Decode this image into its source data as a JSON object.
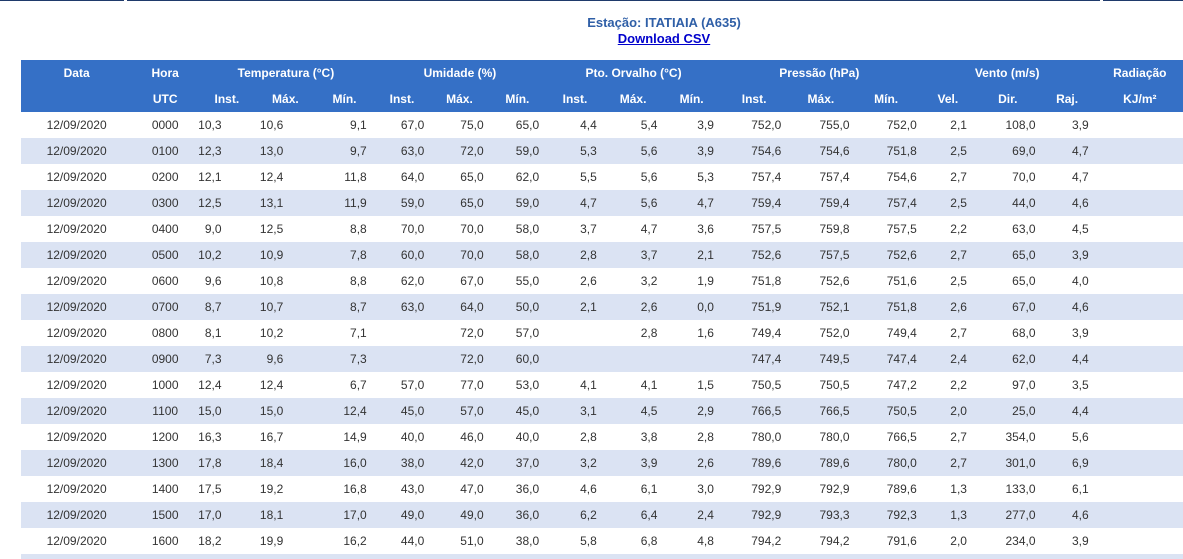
{
  "header": {
    "title": "Estação: ITATIAIA (A635)",
    "link": "Download CSV"
  },
  "table": {
    "groups": [
      "Data",
      "Hora",
      "Temperatura (°C)",
      "Umidade (%)",
      "Pto. Orvalho (°C)",
      "Pressão (hPa)",
      "Vento (m/s)",
      "Radiação"
    ],
    "subheaders": [
      "UTC",
      "Inst.",
      "Máx.",
      "Mín.",
      "Inst.",
      "Máx.",
      "Mín.",
      "Inst.",
      "Máx.",
      "Mín.",
      "Inst.",
      "Máx.",
      "Mín.",
      "Vel.",
      "Dir.",
      "Raj.",
      "KJ/m²"
    ],
    "rows": [
      [
        "12/09/2020",
        "0000",
        "10,3",
        "10,6",
        "9,1",
        "67,0",
        "75,0",
        "65,0",
        "4,4",
        "5,4",
        "3,9",
        "752,0",
        "755,0",
        "752,0",
        "2,1",
        "108,0",
        "3,9"
      ],
      [
        "12/09/2020",
        "0100",
        "12,3",
        "13,0",
        "9,7",
        "63,0",
        "72,0",
        "59,0",
        "5,3",
        "5,6",
        "3,9",
        "754,6",
        "754,6",
        "751,8",
        "2,5",
        "69,0",
        "4,7"
      ],
      [
        "12/09/2020",
        "0200",
        "12,1",
        "12,4",
        "11,8",
        "64,0",
        "65,0",
        "62,0",
        "5,5",
        "5,6",
        "5,3",
        "757,4",
        "757,4",
        "754,6",
        "2,7",
        "70,0",
        "4,7"
      ],
      [
        "12/09/2020",
        "0300",
        "12,5",
        "13,1",
        "11,9",
        "59,0",
        "65,0",
        "59,0",
        "4,7",
        "5,6",
        "4,7",
        "759,4",
        "759,4",
        "757,4",
        "2,5",
        "44,0",
        "4,6"
      ],
      [
        "12/09/2020",
        "0400",
        "9,0",
        "12,5",
        "8,8",
        "70,0",
        "70,0",
        "58,0",
        "3,7",
        "4,7",
        "3,6",
        "757,5",
        "759,8",
        "757,5",
        "2,2",
        "63,0",
        "4,5"
      ],
      [
        "12/09/2020",
        "0500",
        "10,2",
        "10,9",
        "7,8",
        "60,0",
        "70,0",
        "58,0",
        "2,8",
        "3,7",
        "2,1",
        "752,6",
        "757,5",
        "752,6",
        "2,7",
        "65,0",
        "3,9"
      ],
      [
        "12/09/2020",
        "0600",
        "9,6",
        "10,8",
        "8,8",
        "62,0",
        "67,0",
        "55,0",
        "2,6",
        "3,2",
        "1,9",
        "751,8",
        "752,6",
        "751,6",
        "2,5",
        "65,0",
        "4,0"
      ],
      [
        "12/09/2020",
        "0700",
        "8,7",
        "10,7",
        "8,7",
        "63,0",
        "64,0",
        "50,0",
        "2,1",
        "2,6",
        "0,0",
        "751,9",
        "752,1",
        "751,8",
        "2,6",
        "67,0",
        "4,6"
      ],
      [
        "12/09/2020",
        "0800",
        "8,1",
        "10,2",
        "7,1",
        null,
        "72,0",
        "57,0",
        null,
        "2,8",
        "1,6",
        "749,4",
        "752,0",
        "749,4",
        "2,7",
        "68,0",
        "3,9"
      ],
      [
        "12/09/2020",
        "0900",
        "7,3",
        "9,6",
        "7,3",
        null,
        "72,0",
        "60,0",
        null,
        null,
        null,
        "747,4",
        "749,5",
        "747,4",
        "2,4",
        "62,0",
        "4,4"
      ],
      [
        "12/09/2020",
        "1000",
        "12,4",
        "12,4",
        "6,7",
        "57,0",
        "77,0",
        "53,0",
        "4,1",
        "4,1",
        "1,5",
        "750,5",
        "750,5",
        "747,2",
        "2,2",
        "97,0",
        "3,5"
      ],
      [
        "12/09/2020",
        "1100",
        "15,0",
        "15,0",
        "12,4",
        "45,0",
        "57,0",
        "45,0",
        "3,1",
        "4,5",
        "2,9",
        "766,5",
        "766,5",
        "750,5",
        "2,0",
        "25,0",
        "4,4"
      ],
      [
        "12/09/2020",
        "1200",
        "16,3",
        "16,7",
        "14,9",
        "40,0",
        "46,0",
        "40,0",
        "2,8",
        "3,8",
        "2,8",
        "780,0",
        "780,0",
        "766,5",
        "2,7",
        "354,0",
        "5,6"
      ],
      [
        "12/09/2020",
        "1300",
        "17,8",
        "18,4",
        "16,0",
        "38,0",
        "42,0",
        "37,0",
        "3,2",
        "3,9",
        "2,6",
        "789,6",
        "789,6",
        "780,0",
        "2,7",
        "301,0",
        "6,9"
      ],
      [
        "12/09/2020",
        "1400",
        "17,5",
        "19,2",
        "16,8",
        "43,0",
        "47,0",
        "36,0",
        "4,6",
        "6,1",
        "3,0",
        "792,9",
        "792,9",
        "789,6",
        "1,3",
        "133,0",
        "6,1"
      ],
      [
        "12/09/2020",
        "1500",
        "17,0",
        "18,1",
        "17,0",
        "49,0",
        "49,0",
        "36,0",
        "6,2",
        "6,4",
        "2,4",
        "792,9",
        "793,3",
        "792,3",
        "1,3",
        "277,0",
        "4,6"
      ],
      [
        "12/09/2020",
        "1600",
        "18,2",
        "19,9",
        "16,2",
        "44,0",
        "51,0",
        "38,0",
        "5,8",
        "6,8",
        "4,8",
        "794,2",
        "794,2",
        "791,6",
        "2,0",
        "234,0",
        "3,9"
      ]
    ]
  }
}
